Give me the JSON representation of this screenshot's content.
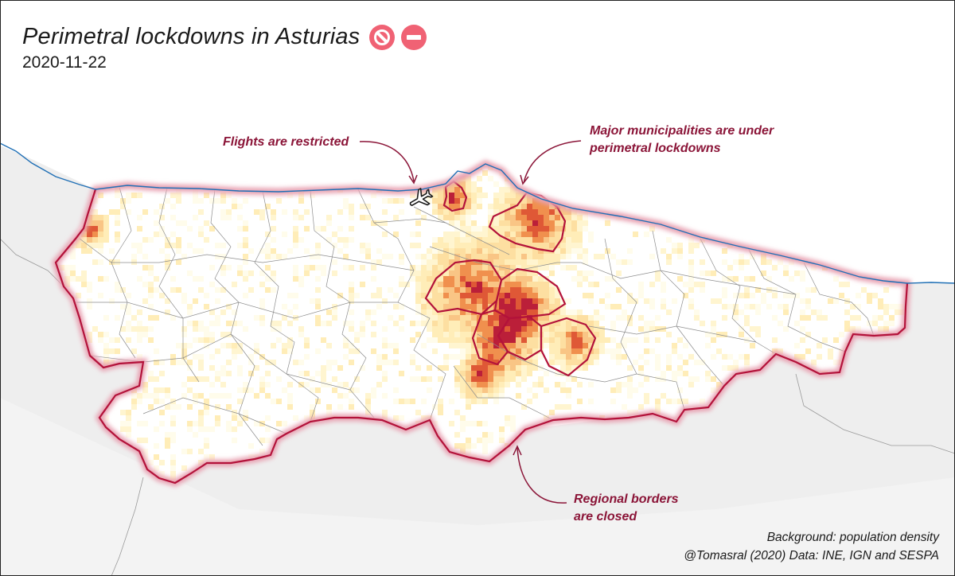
{
  "title": "Perimetral lockdowns in Asturias",
  "date": "2020-11-22",
  "icons": {
    "badge_1": "no-entry-sign-icon",
    "badge_2": "no-entry-icon",
    "airport": "airplane-icon"
  },
  "colors": {
    "badge": "#f06274",
    "lockdown_border": "#b3123a",
    "annotation": "#8b1538",
    "coast": "#1f6fb5",
    "density_low": "#fff6c8",
    "density_high": "#c2102e"
  },
  "annotations": {
    "flights": "Flights are restricted",
    "municipalities_1": "Major municipalities are under",
    "municipalities_2": "perimetral lockdowns",
    "borders_1": "Regional borders",
    "borders_2": "are closed"
  },
  "credits": {
    "background": "Background: population density",
    "source": "@Tomasral (2020) Data: INE, IGN and SESPA"
  }
}
